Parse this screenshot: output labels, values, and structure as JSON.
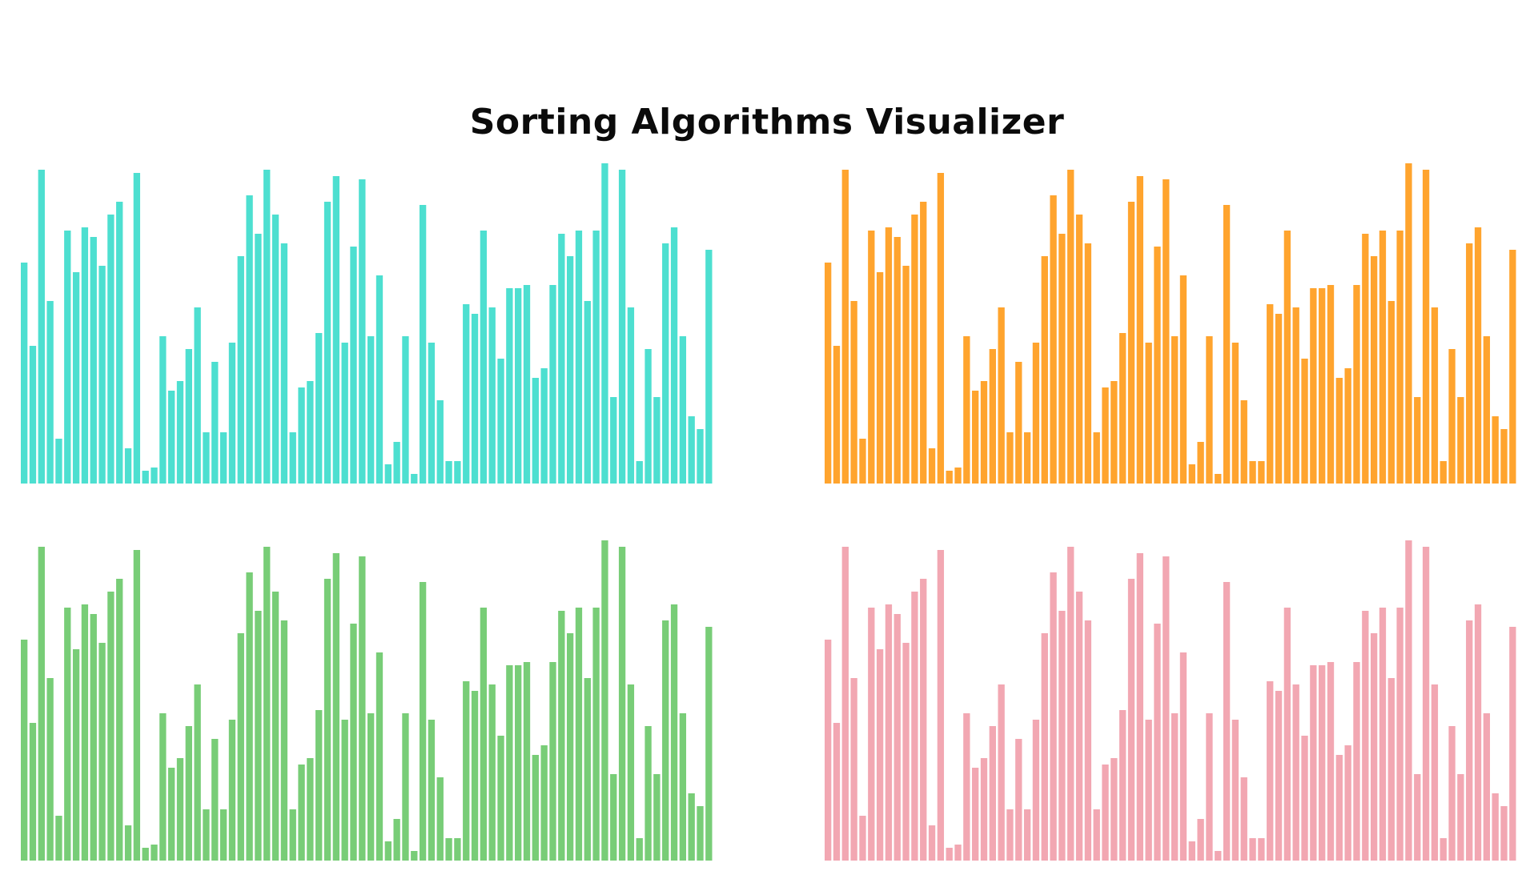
{
  "app": {
    "title": "Sorting Algorithms Visualizer"
  },
  "chart_data": [
    {
      "type": "bar",
      "color": "#4ddfd0",
      "ylim": [
        0,
        100
      ],
      "xlabel": "",
      "ylabel": "",
      "grid": false,
      "values": [
        69,
        43,
        98,
        57,
        14,
        79,
        66,
        80,
        77,
        68,
        84,
        88,
        11,
        97,
        4,
        5,
        46,
        29,
        32,
        42,
        55,
        16,
        38,
        16,
        44,
        71,
        90,
        78,
        98,
        84,
        75,
        16,
        30,
        32,
        47,
        88,
        96,
        44,
        74,
        95,
        46,
        65,
        6,
        13,
        46,
        3,
        87,
        44,
        26,
        7,
        7,
        56,
        53,
        79,
        55,
        39,
        61,
        61,
        62,
        33,
        36,
        62,
        78,
        71,
        79,
        57,
        79,
        100,
        27,
        98,
        55,
        7,
        42,
        27,
        75,
        80,
        46,
        21,
        17,
        73
      ]
    },
    {
      "type": "bar",
      "color": "#ffa42e",
      "ylim": [
        0,
        100
      ],
      "xlabel": "",
      "ylabel": "",
      "grid": false,
      "values": [
        69,
        43,
        98,
        57,
        14,
        79,
        66,
        80,
        77,
        68,
        84,
        88,
        11,
        97,
        4,
        5,
        46,
        29,
        32,
        42,
        55,
        16,
        38,
        16,
        44,
        71,
        90,
        78,
        98,
        84,
        75,
        16,
        30,
        32,
        47,
        88,
        96,
        44,
        74,
        95,
        46,
        65,
        6,
        13,
        46,
        3,
        87,
        44,
        26,
        7,
        7,
        56,
        53,
        79,
        55,
        39,
        61,
        61,
        62,
        33,
        36,
        62,
        78,
        71,
        79,
        57,
        79,
        100,
        27,
        98,
        55,
        7,
        42,
        27,
        75,
        80,
        46,
        21,
        17,
        73
      ]
    },
    {
      "type": "bar",
      "color": "#78cd77",
      "ylim": [
        0,
        100
      ],
      "xlabel": "",
      "ylabel": "",
      "grid": false,
      "values": [
        69,
        43,
        98,
        57,
        14,
        79,
        66,
        80,
        77,
        68,
        84,
        88,
        11,
        97,
        4,
        5,
        46,
        29,
        32,
        42,
        55,
        16,
        38,
        16,
        44,
        71,
        90,
        78,
        98,
        84,
        75,
        16,
        30,
        32,
        47,
        88,
        96,
        44,
        74,
        95,
        46,
        65,
        6,
        13,
        46,
        3,
        87,
        44,
        26,
        7,
        7,
        56,
        53,
        79,
        55,
        39,
        61,
        61,
        62,
        33,
        36,
        62,
        78,
        71,
        79,
        57,
        79,
        100,
        27,
        98,
        55,
        7,
        42,
        27,
        75,
        80,
        46,
        21,
        17,
        73
      ]
    },
    {
      "type": "bar",
      "color": "#f2a7b2",
      "ylim": [
        0,
        100
      ],
      "xlabel": "",
      "ylabel": "",
      "grid": false,
      "values": [
        69,
        43,
        98,
        57,
        14,
        79,
        66,
        80,
        77,
        68,
        84,
        88,
        11,
        97,
        4,
        5,
        46,
        29,
        32,
        42,
        55,
        16,
        38,
        16,
        44,
        71,
        90,
        78,
        98,
        84,
        75,
        16,
        30,
        32,
        47,
        88,
        96,
        44,
        74,
        95,
        46,
        65,
        6,
        13,
        46,
        3,
        87,
        44,
        26,
        7,
        7,
        56,
        53,
        79,
        55,
        39,
        61,
        61,
        62,
        33,
        36,
        62,
        78,
        71,
        79,
        57,
        79,
        100,
        27,
        98,
        55,
        7,
        42,
        27,
        75,
        80,
        46,
        21,
        17,
        73
      ]
    }
  ]
}
